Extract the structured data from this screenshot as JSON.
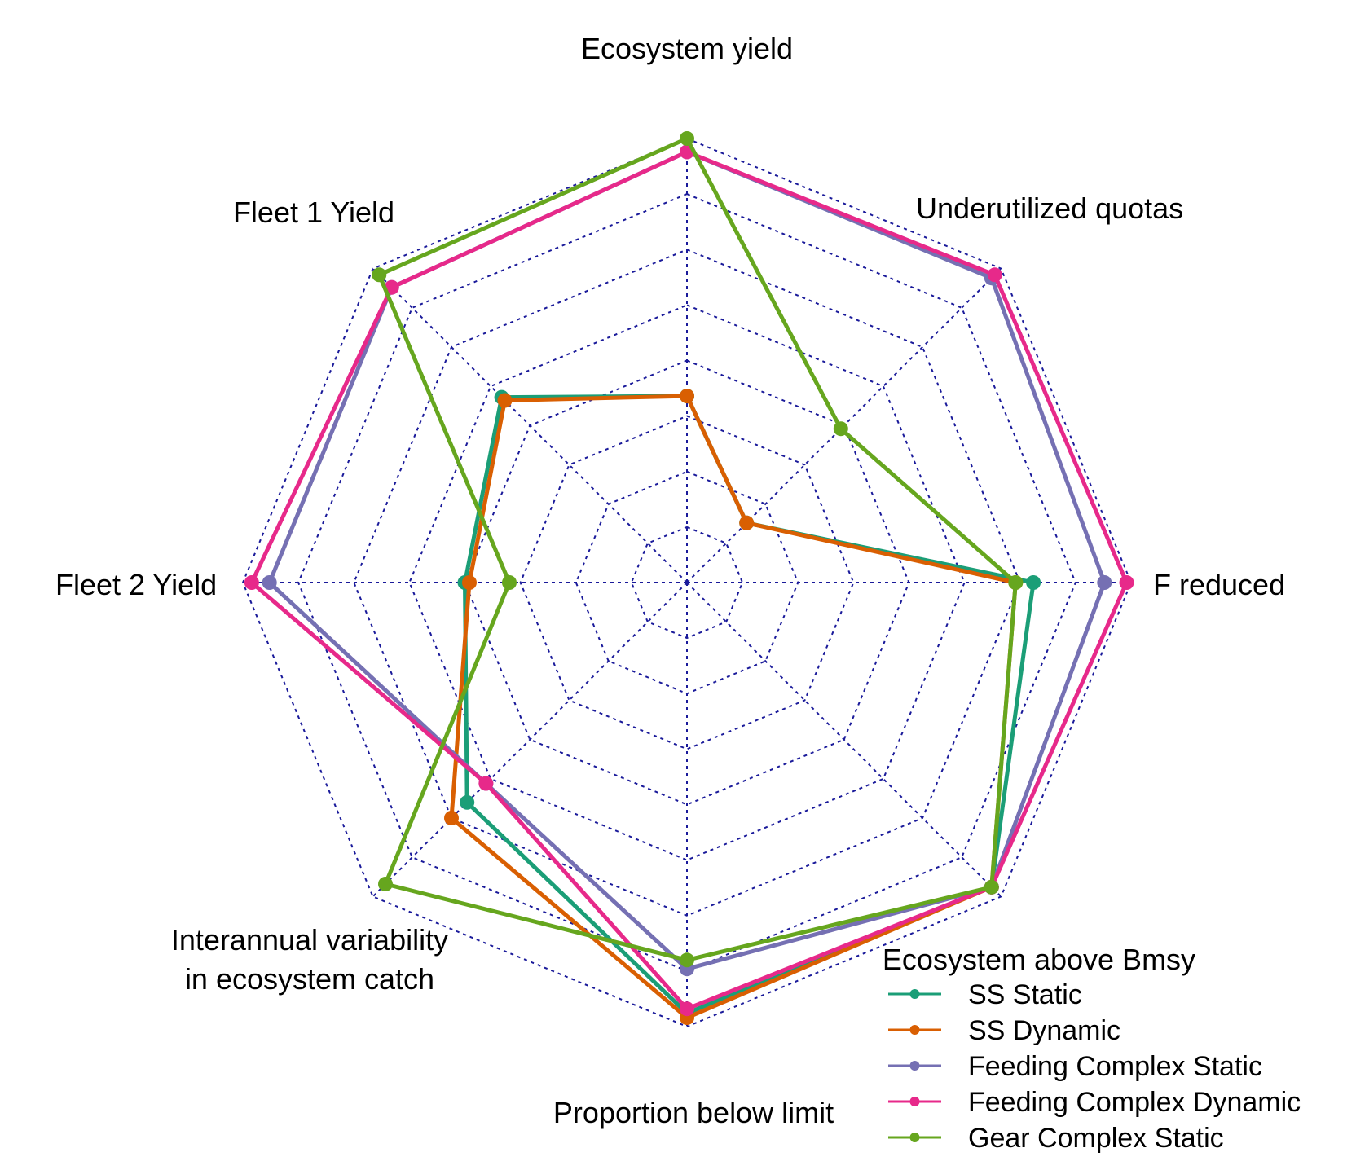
{
  "chart_data": {
    "type": "radar",
    "axes": [
      "Ecosystem yield",
      "Underutilized quotas",
      "F reduced",
      "Ecosystem above Bmsy",
      "Proportion below limit",
      "Interannual variability in ecosystem catch",
      "Fleet 2 Yield",
      "Fleet 1 Yield"
    ],
    "axis_label_lines": [
      [
        "Ecosystem yield"
      ],
      [
        "Underutilized quotas"
      ],
      [
        "F reduced"
      ],
      [
        "Ecosystem above Bmsy"
      ],
      [
        "Proportion below limit"
      ],
      [
        "Interannual variability",
        "in ecosystem catch"
      ],
      [
        "Fleet 2 Yield"
      ],
      [
        "Fleet 1 Yield"
      ]
    ],
    "range": [
      0,
      1
    ],
    "grid_levels": 8,
    "grid": true,
    "legend_position": "bottom-right",
    "series": [
      {
        "name": "SS Static",
        "color": "#1b9e77",
        "values": [
          0.42,
          0.19,
          0.78,
          0.97,
          0.97,
          0.7,
          0.5,
          0.59
        ]
      },
      {
        "name": "SS Dynamic",
        "color": "#d95f02",
        "values": [
          0.42,
          0.19,
          0.74,
          0.97,
          0.98,
          0.75,
          0.49,
          0.58
        ]
      },
      {
        "name": "Feeding Complex Static",
        "color": "#7570b3",
        "values": [
          0.97,
          0.97,
          0.94,
          0.97,
          0.87,
          0.64,
          0.94,
          0.94
        ]
      },
      {
        "name": "Feeding Complex Dynamic",
        "color": "#e7298a",
        "values": [
          0.97,
          0.98,
          0.99,
          0.97,
          0.96,
          0.64,
          0.98,
          0.94
        ]
      },
      {
        "name": "Gear Complex Static",
        "color": "#66a61e",
        "values": [
          1.0,
          0.49,
          0.74,
          0.97,
          0.85,
          0.96,
          0.4,
          0.98
        ]
      }
    ]
  }
}
